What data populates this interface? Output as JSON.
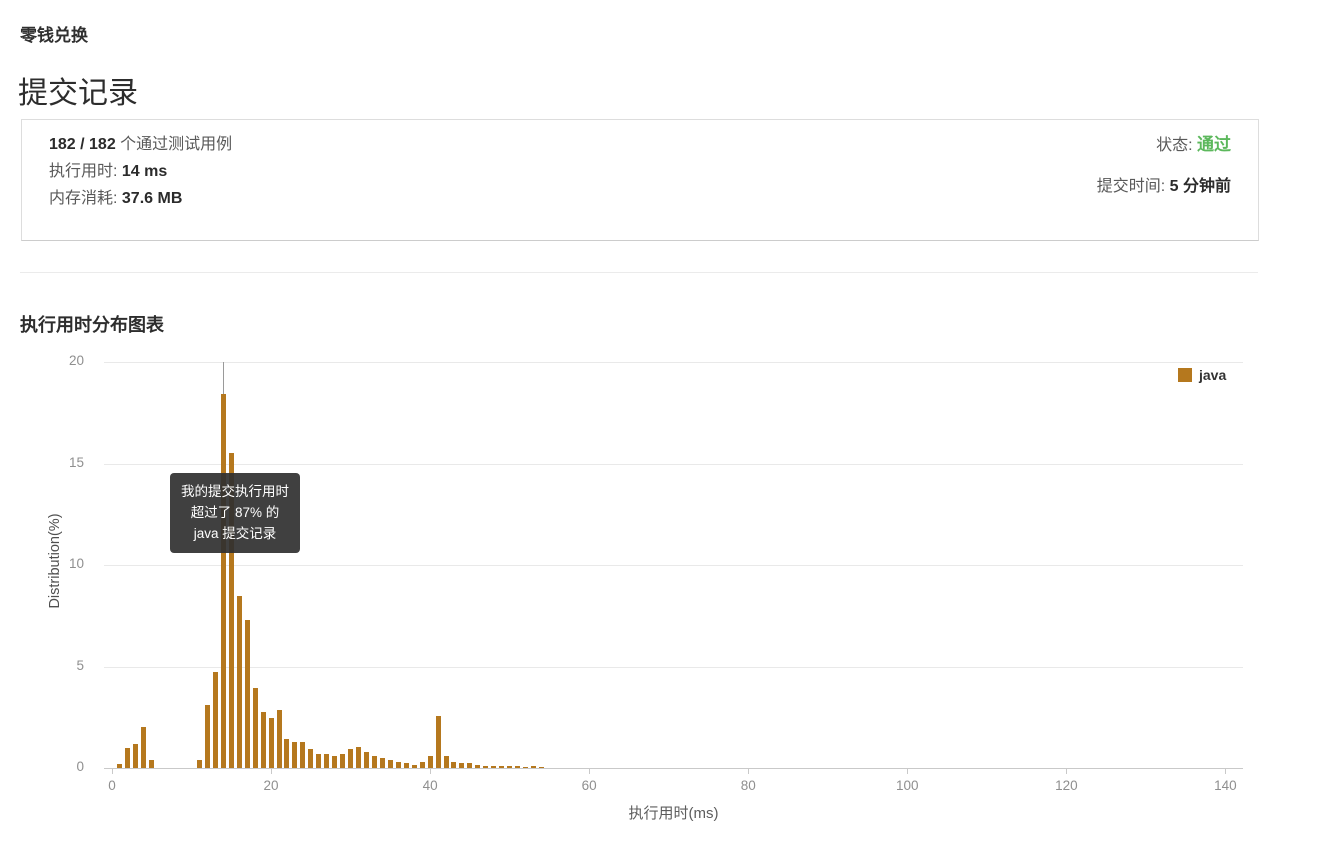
{
  "page": {
    "problem_title": "零钱兑换",
    "page_title": "提交记录"
  },
  "result_card": {
    "passed_bold": "182 / 182",
    "passed_rest": " 个通过测试用例",
    "runtime_label": "执行用时: ",
    "runtime_value": "14 ms",
    "memory_label": "内存消耗: ",
    "memory_value": "37.6 MB",
    "status_label": "状态: ",
    "status_value": "通过",
    "status_color": "#5cb85c",
    "time_label": "提交时间: ",
    "time_value": "5 分钟前"
  },
  "chart_section": {
    "heading": "执行用时分布图表",
    "tooltip": {
      "line1": "我的提交执行用时",
      "line2": "超过了 87% 的",
      "line3": "java 提交记录"
    }
  },
  "chart_data": {
    "type": "bar",
    "title": "执行用时分布图表",
    "xlabel": "执行用时(ms)",
    "ylabel": "Distribution(%)",
    "xlim": [
      -1,
      142
    ],
    "ylim": [
      0,
      20
    ],
    "x_ticks": [
      0,
      20,
      40,
      60,
      80,
      100,
      120,
      140
    ],
    "y_ticks": [
      0,
      5,
      10,
      15,
      20
    ],
    "grid": true,
    "legend_position": "top-right",
    "bar_color": "#b5781e",
    "marker_x": 14,
    "annotation": "我的提交执行用时超过了 87% 的 java 提交记录",
    "series": [
      {
        "name": "java",
        "points": [
          [
            1,
            0.2
          ],
          [
            2,
            1.0
          ],
          [
            3,
            1.2
          ],
          [
            4,
            2.0
          ],
          [
            5,
            0.4
          ],
          [
            11,
            0.4
          ],
          [
            12,
            3.1
          ],
          [
            13,
            4.75
          ],
          [
            14,
            18.4
          ],
          [
            15,
            15.5
          ],
          [
            16,
            8.45
          ],
          [
            17,
            7.3
          ],
          [
            18,
            3.95
          ],
          [
            19,
            2.75
          ],
          [
            20,
            2.45
          ],
          [
            21,
            2.85
          ],
          [
            22,
            1.45
          ],
          [
            23,
            1.3
          ],
          [
            24,
            1.3
          ],
          [
            25,
            0.95
          ],
          [
            26,
            0.7
          ],
          [
            27,
            0.7
          ],
          [
            28,
            0.6
          ],
          [
            29,
            0.7
          ],
          [
            30,
            0.95
          ],
          [
            31,
            1.05
          ],
          [
            32,
            0.8
          ],
          [
            33,
            0.6
          ],
          [
            34,
            0.5
          ],
          [
            35,
            0.4
          ],
          [
            36,
            0.3
          ],
          [
            37,
            0.25
          ],
          [
            38,
            0.15
          ],
          [
            39,
            0.3
          ],
          [
            40,
            0.6
          ],
          [
            41,
            2.55
          ],
          [
            42,
            0.6
          ],
          [
            43,
            0.3
          ],
          [
            44,
            0.25
          ],
          [
            45,
            0.25
          ],
          [
            46,
            0.15
          ],
          [
            47,
            0.12
          ],
          [
            48,
            0.1
          ],
          [
            49,
            0.1
          ],
          [
            50,
            0.12
          ],
          [
            51,
            0.08
          ],
          [
            52,
            0.05
          ],
          [
            53,
            0.12
          ],
          [
            54,
            0.05
          ]
        ]
      }
    ]
  }
}
